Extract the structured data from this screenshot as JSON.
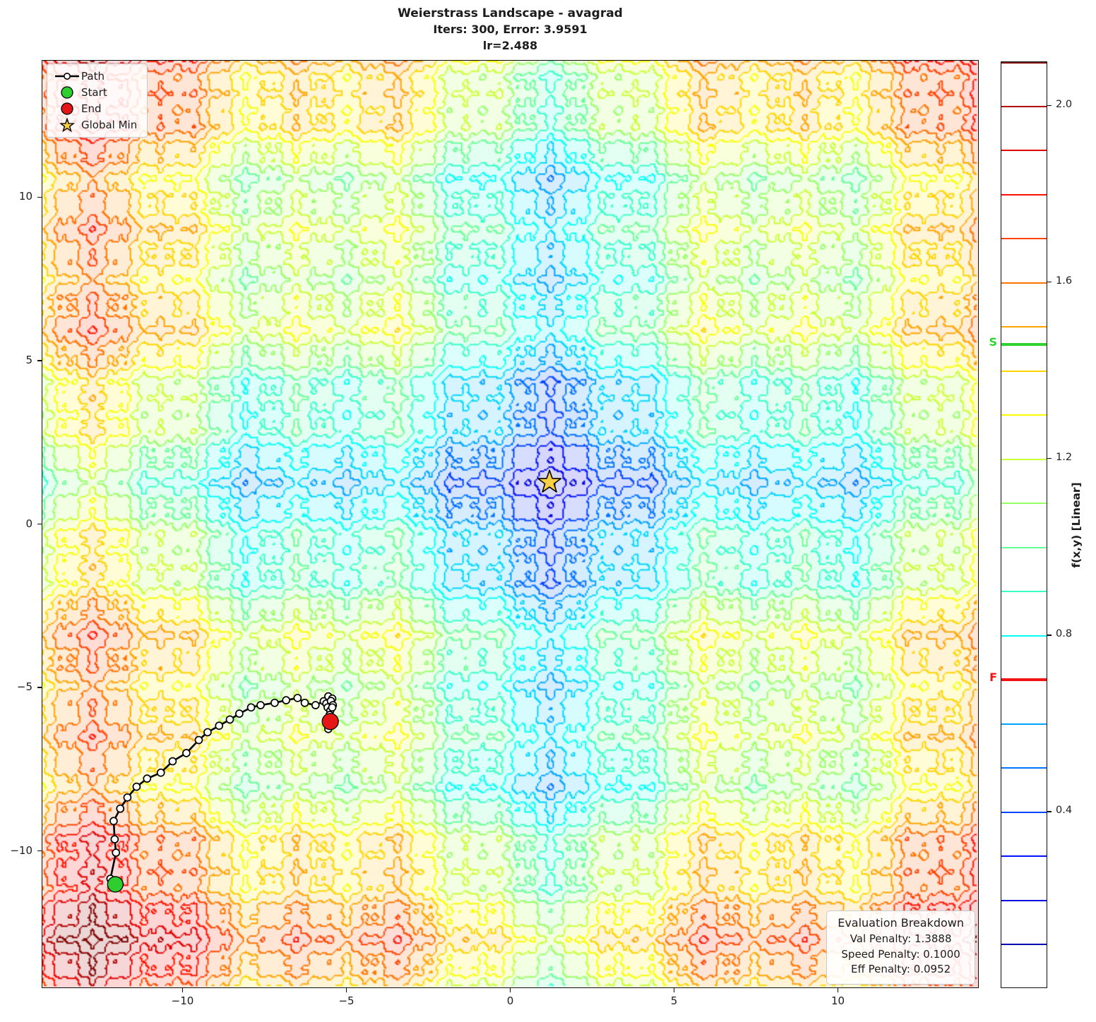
{
  "title": {
    "line1": "Weierstrass Landscape - avagrad",
    "line2": "Iters: 300, Error: 3.9591",
    "line3": "lr=2.488"
  },
  "legend": {
    "items": [
      {
        "label": "Path"
      },
      {
        "label": "Start"
      },
      {
        "label": "End"
      },
      {
        "label": "Global Min"
      }
    ]
  },
  "eval_box": {
    "title": "Evaluation Breakdown",
    "lines": [
      "Val Penalty: 1.3888",
      "Speed Penalty: 0.1000",
      "Eff Penalty: 0.0952"
    ]
  },
  "colorbar": {
    "label": "f(x,y) [Linear]",
    "range": [
      0.0,
      2.1
    ],
    "ticks": [
      {
        "value": 2.0,
        "label": "2.0"
      },
      {
        "value": 1.6,
        "label": "1.6"
      },
      {
        "value": 1.2,
        "label": "1.2"
      },
      {
        "value": 0.8,
        "label": "0.8"
      },
      {
        "value": 0.4,
        "label": "0.4"
      }
    ],
    "start_marker": {
      "label": "S",
      "value": 1.46,
      "color": "#2fd32f"
    },
    "end_marker": {
      "label": "F",
      "value": 0.7,
      "color": "#f01414"
    }
  },
  "chart_data": {
    "type": "contour",
    "title": "Weierstrass Landscape - avagrad",
    "optimizer": "avagrad",
    "iterations": 300,
    "error": 3.9591,
    "learning_rate": 2.488,
    "xlim": [
      -14.3,
      14.3
    ],
    "ylim": [
      -14.2,
      14.2
    ],
    "x_ticks": [
      -10,
      -5,
      0,
      5,
      10
    ],
    "y_ticks": [
      -10,
      -5,
      0,
      5,
      10
    ],
    "contour_levels": {
      "min": 0.0,
      "max": 2.1,
      "step": 0.1
    },
    "colormap": "jet",
    "colors": {
      "path": "#000000",
      "start": "#2dce2d",
      "end": "#e51616",
      "global_min": "#f7cf45"
    },
    "global_min": [
      1.2,
      1.28
    ],
    "start": [
      -12.07,
      -11.04
    ],
    "end": [
      -5.5,
      -6.05
    ],
    "path": [
      [
        -12.07,
        -11.04
      ],
      [
        -12.22,
        -10.87
      ],
      [
        -12.05,
        -10.07
      ],
      [
        -12.09,
        -9.66
      ],
      [
        -12.12,
        -9.1
      ],
      [
        -11.92,
        -8.72
      ],
      [
        -11.7,
        -8.38
      ],
      [
        -11.42,
        -8.05
      ],
      [
        -11.1,
        -7.8
      ],
      [
        -10.68,
        -7.62
      ],
      [
        -10.32,
        -7.27
      ],
      [
        -9.9,
        -7.02
      ],
      [
        -9.52,
        -6.62
      ],
      [
        -9.25,
        -6.38
      ],
      [
        -8.9,
        -6.18
      ],
      [
        -8.57,
        -5.99
      ],
      [
        -8.28,
        -5.81
      ],
      [
        -7.92,
        -5.62
      ],
      [
        -7.63,
        -5.55
      ],
      [
        -7.2,
        -5.48
      ],
      [
        -6.85,
        -5.4
      ],
      [
        -6.5,
        -5.33
      ],
      [
        -6.28,
        -5.48
      ],
      [
        -5.95,
        -5.55
      ],
      [
        -5.7,
        -5.43
      ],
      [
        -5.56,
        -5.28
      ],
      [
        -5.44,
        -5.35
      ],
      [
        -5.62,
        -5.5
      ],
      [
        -5.48,
        -5.42
      ],
      [
        -5.42,
        -5.55
      ],
      [
        -5.58,
        -5.62
      ],
      [
        -5.5,
        -5.72
      ],
      [
        -5.44,
        -5.62
      ],
      [
        -5.52,
        -5.85
      ],
      [
        -5.56,
        -6.28
      ],
      [
        -5.5,
        -6.05
      ]
    ]
  }
}
